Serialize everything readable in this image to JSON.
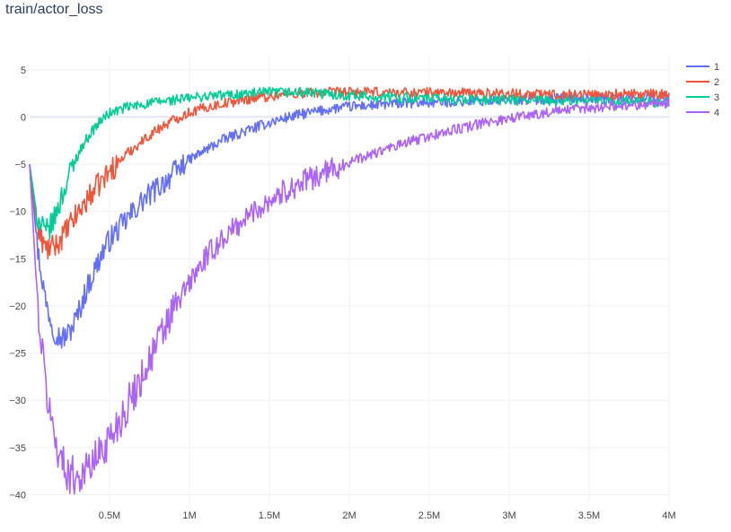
{
  "chart_data": {
    "type": "line",
    "title": "train/actor_loss",
    "xlabel": "",
    "ylabel": "",
    "xlim": [
      0,
      4000000
    ],
    "ylim": [
      -41,
      6.5
    ],
    "x_ticks": [
      {
        "value": 500000,
        "label": "0.5M"
      },
      {
        "value": 1000000,
        "label": "1M"
      },
      {
        "value": 1500000,
        "label": "1.5M"
      },
      {
        "value": 2000000,
        "label": "2M"
      },
      {
        "value": 2500000,
        "label": "2.5M"
      },
      {
        "value": 3000000,
        "label": "3M"
      },
      {
        "value": 3500000,
        "label": "3.5M"
      },
      {
        "value": 4000000,
        "label": "4M"
      }
    ],
    "y_ticks": [
      {
        "value": 5,
        "label": "5"
      },
      {
        "value": 0,
        "label": "0"
      },
      {
        "value": -5,
        "label": "−5"
      },
      {
        "value": -10,
        "label": "−10"
      },
      {
        "value": -15,
        "label": "−15"
      },
      {
        "value": -20,
        "label": "−20"
      },
      {
        "value": -25,
        "label": "−25"
      },
      {
        "value": -30,
        "label": "−30"
      },
      {
        "value": -35,
        "label": "−35"
      },
      {
        "value": -40,
        "label": "−40"
      }
    ],
    "grid": true,
    "legend_position": "top-right",
    "series": [
      {
        "name": "1",
        "color": "#636efa",
        "x": [
          0,
          50000,
          100000,
          150000,
          200000,
          250000,
          300000,
          350000,
          400000,
          450000,
          500000,
          600000,
          700000,
          800000,
          900000,
          1000000,
          1100000,
          1200000,
          1300000,
          1400000,
          1500000,
          1600000,
          1700000,
          1800000,
          1900000,
          2000000,
          2200000,
          2400000,
          2600000,
          2800000,
          3000000,
          3200000,
          3400000,
          3600000,
          3800000,
          4000000
        ],
        "y": [
          -5,
          -14,
          -19.5,
          -22.5,
          -23.5,
          -22.8,
          -21,
          -18.5,
          -16.5,
          -14.5,
          -13,
          -11,
          -9,
          -7.5,
          -6,
          -4.5,
          -3.5,
          -2.5,
          -1.8,
          -1.2,
          -0.6,
          -0.1,
          0.3,
          0.6,
          0.9,
          1.1,
          1.3,
          1.5,
          1.6,
          1.7,
          1.8,
          1.9,
          2.0,
          2.0,
          2.1,
          2.1
        ]
      },
      {
        "name": "2",
        "color": "#ef553b",
        "x": [
          0,
          50000,
          100000,
          150000,
          200000,
          250000,
          300000,
          350000,
          400000,
          450000,
          500000,
          600000,
          700000,
          800000,
          900000,
          1000000,
          1100000,
          1200000,
          1300000,
          1400000,
          1500000,
          1600000,
          1700000,
          1800000,
          1900000,
          2000000,
          2200000,
          2400000,
          2600000,
          2800000,
          3000000,
          3200000,
          3400000,
          3600000,
          3800000,
          4000000
        ],
        "y": [
          -5,
          -12,
          -14,
          -13.8,
          -12.8,
          -11.5,
          -10.2,
          -9,
          -7.8,
          -6.8,
          -5.8,
          -4,
          -2.6,
          -1.3,
          -0.3,
          0.5,
          1.0,
          1.4,
          1.7,
          2.0,
          2.2,
          2.4,
          2.5,
          2.6,
          2.6,
          2.6,
          2.6,
          2.6,
          2.6,
          2.5,
          2.5,
          2.4,
          2.4,
          2.4,
          2.4,
          2.4
        ]
      },
      {
        "name": "3",
        "color": "#00cc96",
        "x": [
          0,
          50000,
          100000,
          150000,
          200000,
          250000,
          300000,
          350000,
          400000,
          450000,
          500000,
          600000,
          700000,
          800000,
          900000,
          1000000,
          1100000,
          1200000,
          1300000,
          1400000,
          1500000,
          1600000,
          1700000,
          1800000,
          1900000,
          2000000,
          2200000,
          2400000,
          2600000,
          2800000,
          3000000,
          3200000,
          3400000,
          3600000,
          3800000,
          4000000
        ],
        "y": [
          -5,
          -11,
          -12.3,
          -11,
          -8.5,
          -6,
          -4,
          -2.5,
          -1.3,
          -0.3,
          0.4,
          1.0,
          1.3,
          1.6,
          1.8,
          2.0,
          2.2,
          2.3,
          2.4,
          2.5,
          2.6,
          2.6,
          2.6,
          2.5,
          2.4,
          2.3,
          2.1,
          2.0,
          1.9,
          1.8,
          1.8,
          1.7,
          1.7,
          1.6,
          1.6,
          1.5
        ]
      },
      {
        "name": "4",
        "color": "#ab63fa",
        "x": [
          0,
          50000,
          100000,
          150000,
          200000,
          250000,
          300000,
          350000,
          400000,
          450000,
          500000,
          550000,
          600000,
          700000,
          800000,
          900000,
          1000000,
          1100000,
          1200000,
          1300000,
          1400000,
          1500000,
          1600000,
          1700000,
          1800000,
          1900000,
          2000000,
          2200000,
          2400000,
          2600000,
          2800000,
          3000000,
          3200000,
          3400000,
          3600000,
          3800000,
          4000000
        ],
        "y": [
          -5,
          -20,
          -28.5,
          -33.5,
          -36.5,
          -37.8,
          -38,
          -37.5,
          -36.5,
          -35.3,
          -34,
          -32.5,
          -31,
          -27.5,
          -24,
          -20.5,
          -17.5,
          -15,
          -13,
          -11.5,
          -10,
          -8.8,
          -7.8,
          -7,
          -6.2,
          -5.5,
          -4.8,
          -3.6,
          -2.5,
          -1.6,
          -0.8,
          -0.1,
          0.4,
          0.8,
          1.1,
          1.3,
          1.5
        ]
      }
    ]
  }
}
